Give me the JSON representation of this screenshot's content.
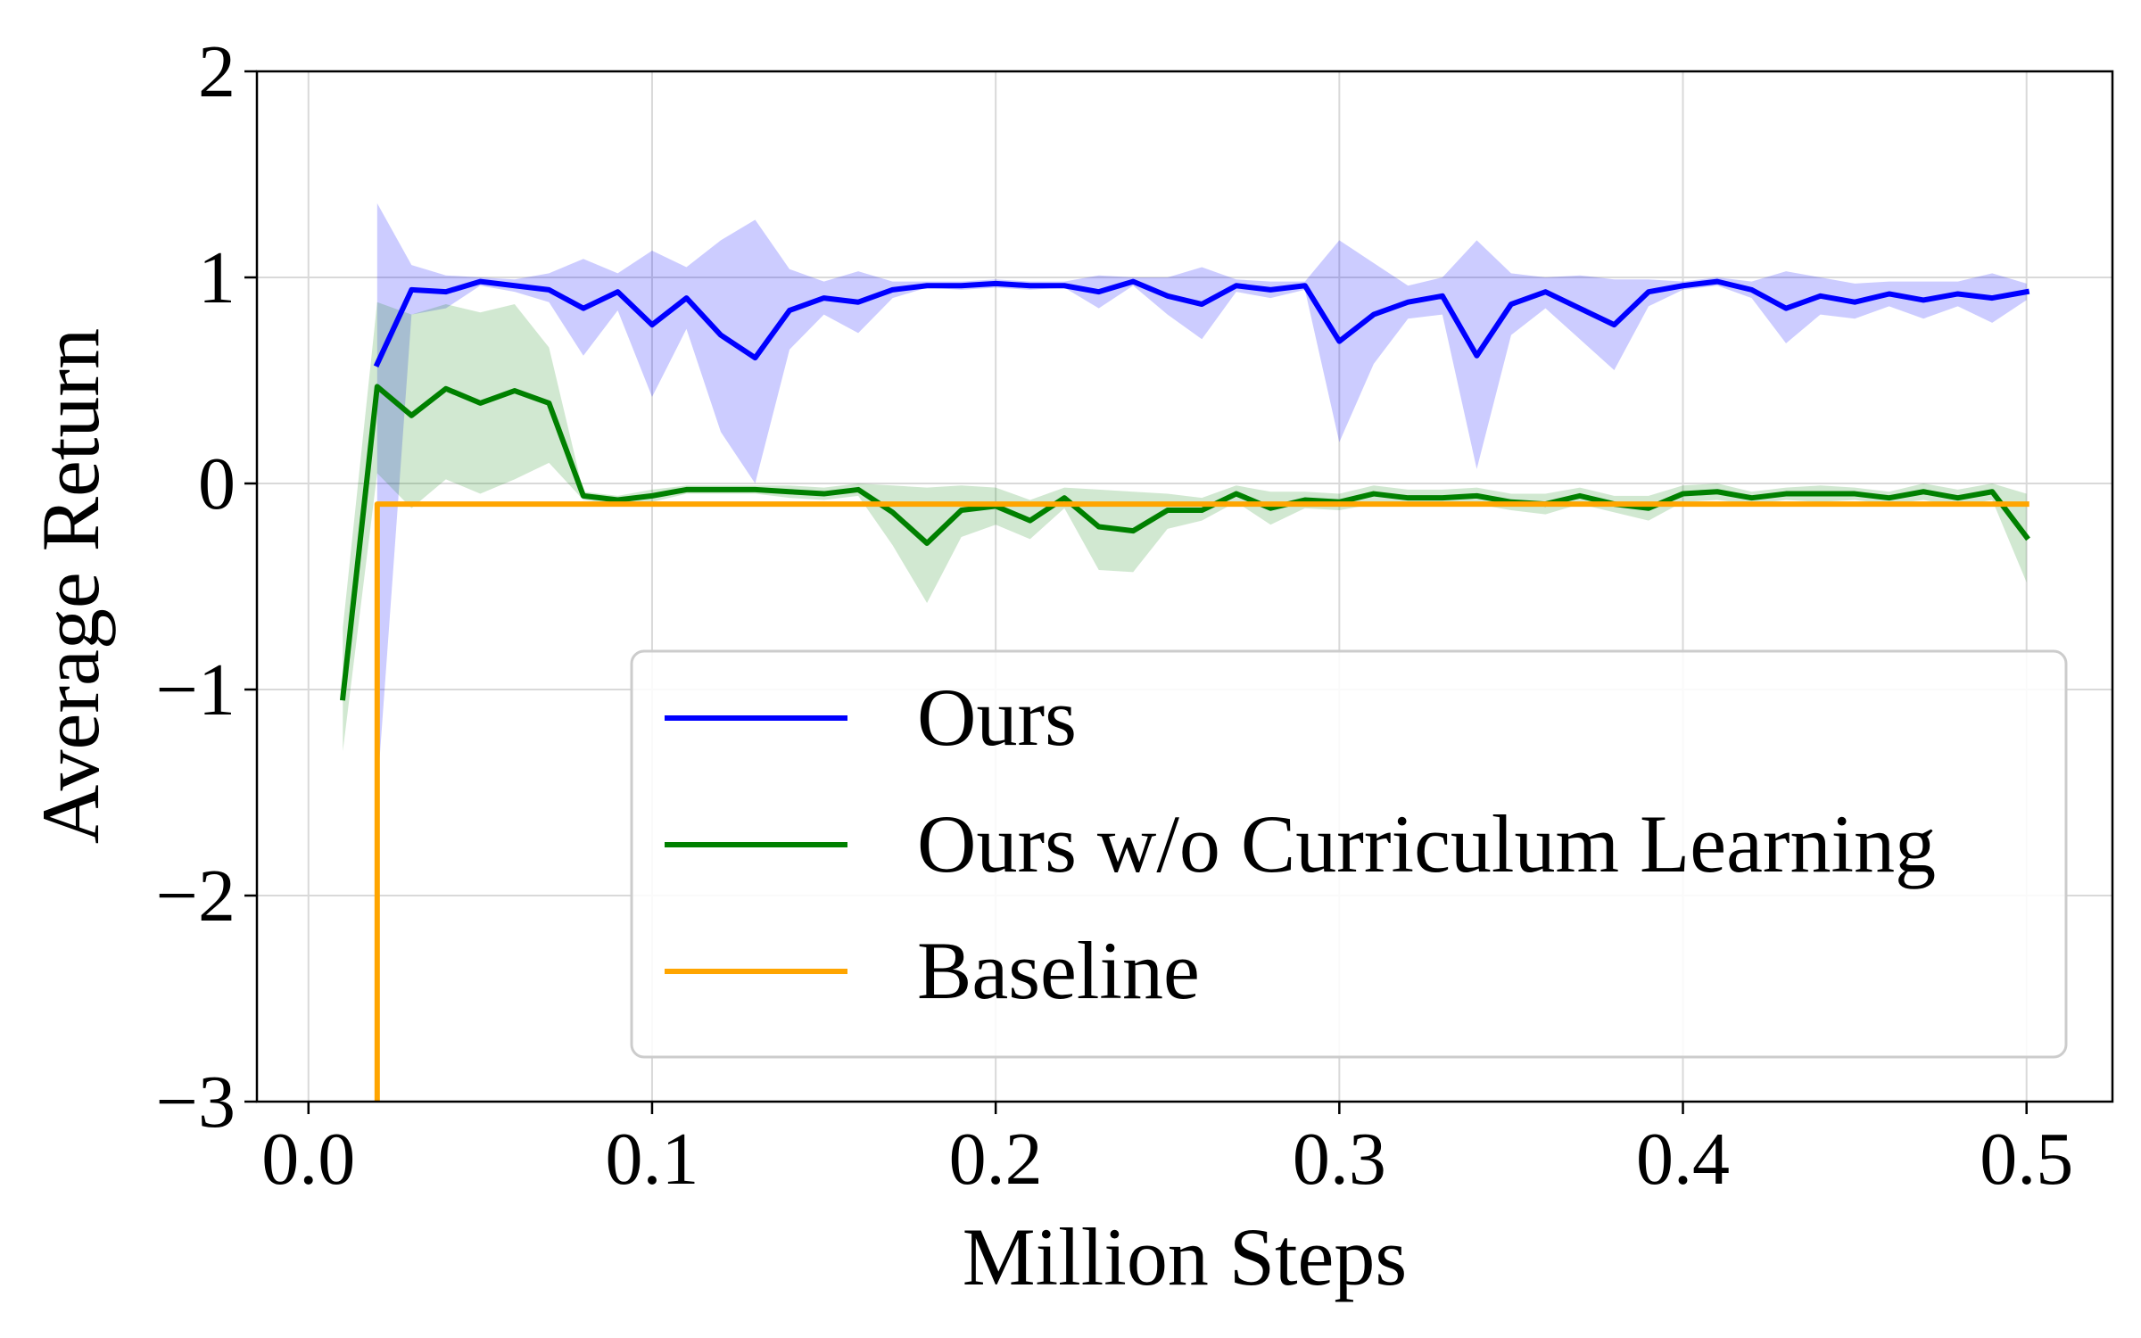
{
  "chart_data": {
    "type": "line",
    "xlabel": "Million Steps",
    "ylabel": "Average Return",
    "xlim": [
      -0.015,
      0.525
    ],
    "ylim": [
      -3,
      2
    ],
    "xticks": [
      "0.0",
      "0.1",
      "0.2",
      "0.3",
      "0.4",
      "0.5"
    ],
    "xtick_values": [
      0.0,
      0.1,
      0.2,
      0.3,
      0.4,
      0.5
    ],
    "yticks": [
      "−3",
      "−2",
      "−1",
      "0",
      "1",
      "2"
    ],
    "ytick_values": [
      -3,
      -2,
      -1,
      0,
      1,
      2
    ],
    "grid": true,
    "legend_position": "lower-right",
    "series": [
      {
        "name": "Ours",
        "color": "#0000ff",
        "band_color": "#0000ff",
        "x": [
          0.02,
          0.03,
          0.04,
          0.05,
          0.06,
          0.07,
          0.08,
          0.09,
          0.1,
          0.11,
          0.12,
          0.13,
          0.14,
          0.15,
          0.16,
          0.17,
          0.18,
          0.19,
          0.2,
          0.21,
          0.22,
          0.23,
          0.24,
          0.25,
          0.26,
          0.27,
          0.28,
          0.29,
          0.3,
          0.31,
          0.32,
          0.33,
          0.34,
          0.35,
          0.36,
          0.37,
          0.38,
          0.39,
          0.4,
          0.41,
          0.42,
          0.43,
          0.44,
          0.45,
          0.46,
          0.47,
          0.48,
          0.49,
          0.5
        ],
        "y": [
          0.58,
          0.94,
          0.93,
          0.98,
          0.96,
          0.94,
          0.85,
          0.93,
          0.77,
          0.9,
          0.72,
          0.61,
          0.84,
          0.9,
          0.88,
          0.94,
          0.96,
          0.96,
          0.97,
          0.96,
          0.96,
          0.93,
          0.98,
          0.91,
          0.87,
          0.96,
          0.94,
          0.96,
          0.69,
          0.82,
          0.88,
          0.91,
          0.62,
          0.87,
          0.93,
          0.85,
          0.77,
          0.93,
          0.96,
          0.98,
          0.94,
          0.85,
          0.91,
          0.88,
          0.92,
          0.89,
          0.92,
          0.9,
          0.93
        ],
        "lower": [
          -1.5,
          0.82,
          0.85,
          0.96,
          0.93,
          0.88,
          0.62,
          0.84,
          0.42,
          0.75,
          0.25,
          0.0,
          0.65,
          0.82,
          0.73,
          0.9,
          0.95,
          0.94,
          0.95,
          0.94,
          0.95,
          0.85,
          0.96,
          0.82,
          0.7,
          0.93,
          0.9,
          0.94,
          0.2,
          0.58,
          0.8,
          0.82,
          0.07,
          0.72,
          0.85,
          0.7,
          0.55,
          0.86,
          0.94,
          0.96,
          0.9,
          0.68,
          0.82,
          0.8,
          0.86,
          0.8,
          0.86,
          0.78,
          0.89
        ],
        "upper": [
          1.36,
          1.06,
          1.01,
          1.0,
          0.99,
          1.02,
          1.09,
          1.02,
          1.13,
          1.05,
          1.18,
          1.28,
          1.04,
          0.98,
          1.03,
          0.98,
          0.98,
          0.98,
          0.99,
          0.98,
          0.98,
          1.01,
          1.0,
          1.0,
          1.05,
          0.99,
          0.98,
          0.98,
          1.18,
          1.07,
          0.96,
          1.0,
          1.18,
          1.02,
          1.0,
          1.01,
          0.99,
          0.99,
          0.98,
          1.0,
          0.98,
          1.03,
          1.0,
          0.97,
          0.98,
          0.98,
          0.98,
          1.02,
          0.97
        ]
      },
      {
        "name": "Ours w/o Curriculum Learning",
        "color": "#008000",
        "band_color": "#008000",
        "x": [
          0.01,
          0.02,
          0.03,
          0.04,
          0.05,
          0.06,
          0.07,
          0.08,
          0.09,
          0.1,
          0.11,
          0.12,
          0.13,
          0.14,
          0.15,
          0.16,
          0.17,
          0.18,
          0.19,
          0.2,
          0.21,
          0.22,
          0.23,
          0.24,
          0.25,
          0.26,
          0.27,
          0.28,
          0.29,
          0.3,
          0.31,
          0.32,
          0.33,
          0.34,
          0.35,
          0.36,
          0.37,
          0.38,
          0.39,
          0.4,
          0.41,
          0.42,
          0.43,
          0.44,
          0.45,
          0.46,
          0.47,
          0.48,
          0.49,
          0.5
        ],
        "y": [
          -1.04,
          0.47,
          0.33,
          0.46,
          0.39,
          0.45,
          0.39,
          -0.06,
          -0.08,
          -0.06,
          -0.03,
          -0.03,
          -0.03,
          -0.04,
          -0.05,
          -0.03,
          -0.14,
          -0.29,
          -0.13,
          -0.11,
          -0.18,
          -0.07,
          -0.21,
          -0.23,
          -0.13,
          -0.13,
          -0.05,
          -0.12,
          -0.08,
          -0.09,
          -0.05,
          -0.07,
          -0.07,
          -0.06,
          -0.09,
          -0.1,
          -0.06,
          -0.1,
          -0.12,
          -0.05,
          -0.04,
          -0.07,
          -0.05,
          -0.05,
          -0.05,
          -0.07,
          -0.04,
          -0.07,
          -0.04,
          -0.26
        ],
        "lower": [
          -1.3,
          0.05,
          -0.12,
          0.02,
          -0.05,
          0.02,
          0.1,
          -0.08,
          -0.1,
          -0.09,
          -0.05,
          -0.05,
          -0.05,
          -0.07,
          -0.08,
          -0.06,
          -0.3,
          -0.58,
          -0.26,
          -0.2,
          -0.27,
          -0.12,
          -0.42,
          -0.43,
          -0.22,
          -0.18,
          -0.09,
          -0.2,
          -0.12,
          -0.13,
          -0.1,
          -0.11,
          -0.11,
          -0.1,
          -0.13,
          -0.15,
          -0.1,
          -0.14,
          -0.18,
          -0.09,
          -0.08,
          -0.1,
          -0.08,
          -0.09,
          -0.08,
          -0.1,
          -0.08,
          -0.11,
          -0.08,
          -0.48
        ],
        "upper": [
          -0.7,
          0.88,
          0.82,
          0.87,
          0.83,
          0.87,
          0.66,
          -0.04,
          -0.06,
          -0.03,
          -0.01,
          -0.01,
          -0.01,
          -0.01,
          -0.02,
          0.0,
          -0.01,
          -0.02,
          -0.01,
          -0.02,
          -0.08,
          -0.02,
          -0.03,
          -0.04,
          -0.05,
          -0.07,
          -0.01,
          -0.04,
          -0.04,
          -0.05,
          -0.01,
          -0.03,
          -0.03,
          -0.02,
          -0.05,
          -0.05,
          -0.02,
          -0.06,
          -0.06,
          -0.01,
          0.0,
          -0.04,
          -0.02,
          -0.01,
          -0.02,
          -0.04,
          0.0,
          -0.03,
          0.0,
          -0.05
        ]
      },
      {
        "name": "Baseline",
        "color": "#ffa500",
        "x": [
          0.02,
          0.02,
          0.5
        ],
        "y": [
          -3.0,
          -0.1,
          -0.1
        ]
      }
    ]
  }
}
